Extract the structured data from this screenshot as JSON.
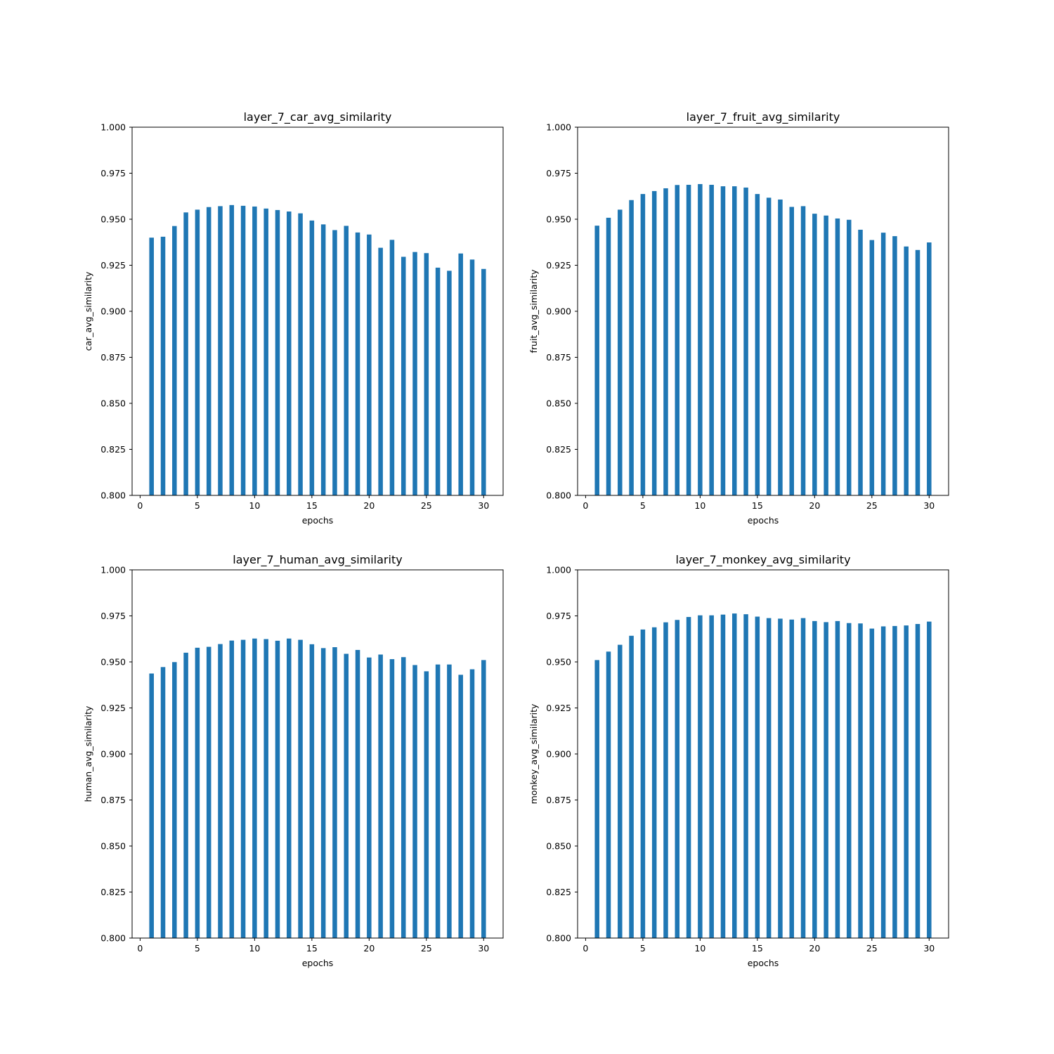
{
  "chart_data": [
    {
      "type": "bar",
      "title": "layer_7_car_avg_similarity",
      "xlabel": "epochs",
      "ylabel": "car_avg_similarity",
      "ylim": [
        0.8,
        1.0
      ],
      "xlim": [
        -0.7,
        31.7
      ],
      "xticks": [
        "0",
        "5",
        "10",
        "15",
        "20",
        "25",
        "30"
      ],
      "yticks": [
        "0.800",
        "0.825",
        "0.850",
        "0.875",
        "0.900",
        "0.925",
        "0.950",
        "0.975",
        "1.000"
      ],
      "bar_color": "#1f77b4",
      "x": [
        1,
        2,
        3,
        4,
        5,
        6,
        7,
        8,
        9,
        10,
        11,
        12,
        13,
        14,
        15,
        16,
        17,
        18,
        19,
        20,
        21,
        22,
        23,
        24,
        25,
        26,
        27,
        28,
        29,
        30
      ],
      "values": [
        0.94,
        0.9405,
        0.9463,
        0.9537,
        0.9552,
        0.9566,
        0.9571,
        0.9577,
        0.9573,
        0.9569,
        0.9558,
        0.955,
        0.9542,
        0.9532,
        0.9493,
        0.9472,
        0.9441,
        0.9464,
        0.9428,
        0.9417,
        0.9345,
        0.9388,
        0.9296,
        0.9322,
        0.9316,
        0.9237,
        0.922,
        0.9314,
        0.9281,
        0.923
      ]
    },
    {
      "type": "bar",
      "title": "layer_7_fruit_avg_similarity",
      "xlabel": "epochs",
      "ylabel": "fruit_avg_similarity",
      "ylim": [
        0.8,
        1.0
      ],
      "xlim": [
        -0.7,
        31.7
      ],
      "xticks": [
        "0",
        "5",
        "10",
        "15",
        "20",
        "25",
        "30"
      ],
      "yticks": [
        "0.800",
        "0.825",
        "0.850",
        "0.875",
        "0.900",
        "0.925",
        "0.950",
        "0.975",
        "1.000"
      ],
      "bar_color": "#1f77b4",
      "x": [
        1,
        2,
        3,
        4,
        5,
        6,
        7,
        8,
        9,
        10,
        11,
        12,
        13,
        14,
        15,
        16,
        17,
        18,
        19,
        20,
        21,
        22,
        23,
        24,
        25,
        26,
        27,
        28,
        29,
        30
      ],
      "values": [
        0.9465,
        0.9508,
        0.9552,
        0.9604,
        0.9637,
        0.9653,
        0.9668,
        0.9686,
        0.9687,
        0.9691,
        0.9687,
        0.9679,
        0.9679,
        0.9672,
        0.9637,
        0.9617,
        0.9607,
        0.9567,
        0.9571,
        0.953,
        0.952,
        0.9504,
        0.9497,
        0.9443,
        0.9387,
        0.9427,
        0.9408,
        0.9352,
        0.9333,
        0.9374
      ]
    },
    {
      "type": "bar",
      "title": "layer_7_human_avg_similarity",
      "xlabel": "epochs",
      "ylabel": "human_avg_similarity",
      "ylim": [
        0.8,
        1.0
      ],
      "xlim": [
        -0.7,
        31.7
      ],
      "xticks": [
        "0",
        "5",
        "10",
        "15",
        "20",
        "25",
        "30"
      ],
      "yticks": [
        "0.800",
        "0.825",
        "0.850",
        "0.875",
        "0.900",
        "0.925",
        "0.950",
        "0.975",
        "1.000"
      ],
      "bar_color": "#1f77b4",
      "x": [
        1,
        2,
        3,
        4,
        5,
        6,
        7,
        8,
        9,
        10,
        11,
        12,
        13,
        14,
        15,
        16,
        17,
        18,
        19,
        20,
        21,
        22,
        23,
        24,
        25,
        26,
        27,
        28,
        29,
        30
      ],
      "values": [
        0.9437,
        0.9472,
        0.9499,
        0.955,
        0.9577,
        0.9582,
        0.9597,
        0.9616,
        0.962,
        0.9627,
        0.9624,
        0.9615,
        0.9627,
        0.962,
        0.9596,
        0.9575,
        0.958,
        0.9544,
        0.9565,
        0.9524,
        0.954,
        0.9515,
        0.9526,
        0.9483,
        0.9449,
        0.9486,
        0.9486,
        0.943,
        0.946,
        0.951
      ]
    },
    {
      "type": "bar",
      "title": "layer_7_monkey_avg_similarity",
      "xlabel": "epochs",
      "ylabel": "monkey_avg_similarity",
      "ylim": [
        0.8,
        1.0
      ],
      "xlim": [
        -0.7,
        31.7
      ],
      "xticks": [
        "0",
        "5",
        "10",
        "15",
        "20",
        "25",
        "30"
      ],
      "yticks": [
        "0.800",
        "0.825",
        "0.850",
        "0.875",
        "0.900",
        "0.925",
        "0.950",
        "0.975",
        "1.000"
      ],
      "bar_color": "#1f77b4",
      "x": [
        1,
        2,
        3,
        4,
        5,
        6,
        7,
        8,
        9,
        10,
        11,
        12,
        13,
        14,
        15,
        16,
        17,
        18,
        19,
        20,
        21,
        22,
        23,
        24,
        25,
        26,
        27,
        28,
        29,
        30
      ],
      "values": [
        0.951,
        0.9556,
        0.9593,
        0.9642,
        0.9676,
        0.9688,
        0.9715,
        0.9728,
        0.9744,
        0.9753,
        0.9753,
        0.9757,
        0.9763,
        0.9759,
        0.9746,
        0.9738,
        0.9735,
        0.973,
        0.9738,
        0.9722,
        0.9716,
        0.9722,
        0.9711,
        0.9709,
        0.9681,
        0.9693,
        0.9695,
        0.9698,
        0.9706,
        0.9719
      ]
    }
  ]
}
